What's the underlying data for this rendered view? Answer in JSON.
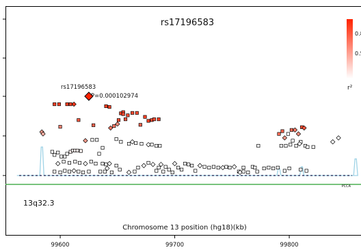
{
  "chart_data": {
    "type": "scatter",
    "title": "rs17196583",
    "xlabel": "Chromosome 13 position  (hg18)(kb)",
    "region_label": "13q32.3",
    "xlim": [
      99552,
      99865
    ],
    "x_ticks": [
      "99600",
      "99700",
      "99800"
    ],
    "gene_label": "PCCA",
    "legend": {
      "ticks": [
        "0.8",
        "0.5"
      ],
      "title": "r²",
      "gradient_colors": [
        "#ff2200",
        "#ffffff"
      ],
      "placement": "top-right"
    },
    "index_snp": {
      "name": "rs17196583",
      "p_label": "P=0.000102974",
      "x": 99625,
      "level": 2.0,
      "r2": 1.0,
      "shape": "diamond"
    },
    "points": [
      [
        99584,
        1.1,
        0.45,
        "d"
      ],
      [
        99585,
        1.05,
        0.35,
        "d"
      ],
      [
        99593,
        0.6,
        0.0,
        "s"
      ],
      [
        99595,
        0.52,
        0.0,
        "s"
      ],
      [
        99598,
        0.58,
        0.0,
        "s"
      ],
      [
        99601,
        0.48,
        0.0,
        "s"
      ],
      [
        99604,
        0.48,
        0.0,
        "s"
      ],
      [
        99606,
        0.55,
        0.0,
        "s"
      ],
      [
        99609,
        0.6,
        0.05,
        "s"
      ],
      [
        99611,
        0.63,
        0.05,
        "s"
      ],
      [
        99613,
        0.63,
        0.05,
        "s"
      ],
      [
        99615,
        0.63,
        0.05,
        "s"
      ],
      [
        99618,
        0.62,
        0.05,
        "s"
      ],
      [
        99595,
        0.1,
        0.0,
        "s"
      ],
      [
        99600,
        0.08,
        0.0,
        "s"
      ],
      [
        99604,
        0.12,
        0.0,
        "s"
      ],
      [
        99608,
        0.1,
        0.0,
        "s"
      ],
      [
        99612,
        0.12,
        0.0,
        "d"
      ],
      [
        99616,
        0.1,
        0.0,
        "s"
      ],
      [
        99620,
        0.08,
        0.0,
        "s"
      ],
      [
        99625,
        0.1,
        0.0,
        "s"
      ],
      [
        99598,
        0.3,
        0.0,
        "d"
      ],
      [
        99603,
        0.35,
        0.0,
        "s"
      ],
      [
        99608,
        0.32,
        0.0,
        "s"
      ],
      [
        99613,
        0.35,
        0.0,
        "s"
      ],
      [
        99617,
        0.32,
        0.0,
        "s"
      ],
      [
        99622,
        0.3,
        0.0,
        "d"
      ],
      [
        99627,
        0.35,
        0.0,
        "s"
      ],
      [
        99631,
        0.3,
        0.0,
        "s"
      ],
      [
        99595,
        1.8,
        0.85,
        "s"
      ],
      [
        99599,
        1.8,
        0.85,
        "s"
      ],
      [
        99606,
        1.8,
        0.85,
        "s"
      ],
      [
        99609,
        1.8,
        0.85,
        "s"
      ],
      [
        99612,
        1.8,
        0.9,
        "d"
      ],
      [
        99600,
        1.23,
        0.55,
        "s"
      ],
      [
        99616,
        1.4,
        0.75,
        "s"
      ],
      [
        99622,
        0.88,
        0.45,
        "d"
      ],
      [
        99628,
        0.9,
        0.0,
        "s"
      ],
      [
        99632,
        0.9,
        0.0,
        "s"
      ],
      [
        99629,
        1.27,
        0.7,
        "s"
      ],
      [
        99634,
        0.55,
        0.0,
        "s"
      ],
      [
        99637,
        0.7,
        0.0,
        "s"
      ],
      [
        99637,
        0.3,
        0.0,
        "s"
      ],
      [
        99640,
        0.28,
        0.0,
        "s"
      ],
      [
        99643,
        0.3,
        0.0,
        "d"
      ],
      [
        99635,
        0.1,
        0.0,
        "s"
      ],
      [
        99639,
        0.1,
        0.0,
        "s"
      ],
      [
        99641,
        0.18,
        0.0,
        "d"
      ],
      [
        99645,
        0.08,
        0.0,
        "s"
      ],
      [
        99649,
        0.25,
        0.0,
        "s"
      ],
      [
        99652,
        0.15,
        0.0,
        "s"
      ],
      [
        99640,
        1.75,
        0.85,
        "s"
      ],
      [
        99643,
        1.73,
        0.85,
        "s"
      ],
      [
        99644,
        1.2,
        0.6,
        "d"
      ],
      [
        99647,
        1.25,
        0.6,
        "s"
      ],
      [
        99650,
        1.3,
        0.5,
        "d"
      ],
      [
        99653,
        1.57,
        0.85,
        "s"
      ],
      [
        99655,
        1.6,
        0.8,
        "s"
      ],
      [
        99655,
        1.55,
        0.8,
        "s"
      ],
      [
        99659,
        1.52,
        0.8,
        "s"
      ],
      [
        99663,
        1.58,
        0.8,
        "s"
      ],
      [
        99667,
        1.58,
        0.8,
        "s"
      ],
      [
        99651,
        1.4,
        0.8,
        "s"
      ],
      [
        99657,
        1.42,
        0.75,
        "s"
      ],
      [
        99670,
        1.28,
        0.7,
        "s"
      ],
      [
        99674,
        1.48,
        0.85,
        "s"
      ],
      [
        99677,
        1.38,
        0.85,
        "s"
      ],
      [
        99680,
        1.4,
        0.8,
        "s"
      ],
      [
        99682,
        1.42,
        0.8,
        "s"
      ],
      [
        99686,
        1.42,
        0.85,
        "s"
      ],
      [
        99649,
        0.92,
        0.0,
        "s"
      ],
      [
        99653,
        0.85,
        0.0,
        "s"
      ],
      [
        99660,
        0.8,
        0.0,
        "s"
      ],
      [
        99663,
        0.85,
        0.0,
        "d"
      ],
      [
        99666,
        0.82,
        0.0,
        "s"
      ],
      [
        99671,
        0.8,
        0.0,
        "s"
      ],
      [
        99677,
        0.78,
        0.0,
        "d"
      ],
      [
        99680,
        0.78,
        0.0,
        "s"
      ],
      [
        99684,
        0.75,
        0.0,
        "s"
      ],
      [
        99687,
        0.75,
        0.0,
        "s"
      ],
      [
        99660,
        0.08,
        0.0,
        "d"
      ],
      [
        99665,
        0.1,
        0.0,
        "s"
      ],
      [
        99668,
        0.2,
        0.0,
        "s"
      ],
      [
        99673,
        0.25,
        0.0,
        "d"
      ],
      [
        99677,
        0.32,
        0.0,
        "s"
      ],
      [
        99681,
        0.28,
        0.0,
        "d"
      ],
      [
        99684,
        0.12,
        0.0,
        "s"
      ],
      [
        99686,
        0.2,
        0.0,
        "s"
      ],
      [
        99688,
        0.28,
        0.0,
        "d"
      ],
      [
        99690,
        0.1,
        0.0,
        "s"
      ],
      [
        99692,
        0.22,
        0.0,
        "s"
      ],
      [
        99695,
        0.15,
        0.0,
        "s"
      ],
      [
        99698,
        0.08,
        0.0,
        "s"
      ],
      [
        99700,
        0.3,
        0.0,
        "d"
      ],
      [
        99703,
        0.2,
        0.0,
        "s"
      ],
      [
        99706,
        0.15,
        0.0,
        "s"
      ],
      [
        99709,
        0.3,
        0.0,
        "s"
      ],
      [
        99712,
        0.28,
        0.0,
        "s"
      ],
      [
        99715,
        0.25,
        0.0,
        "s"
      ],
      [
        99718,
        0.12,
        0.0,
        "s"
      ],
      [
        99722,
        0.25,
        0.0,
        "d"
      ],
      [
        99726,
        0.22,
        0.0,
        "s"
      ],
      [
        99730,
        0.2,
        0.0,
        "s"
      ],
      [
        99734,
        0.22,
        0.0,
        "s"
      ],
      [
        99738,
        0.2,
        0.0,
        "s"
      ],
      [
        99742,
        0.2,
        0.0,
        "d"
      ],
      [
        99745,
        0.22,
        0.0,
        "s"
      ],
      [
        99748,
        0.2,
        0.0,
        "s"
      ],
      [
        99752,
        0.22,
        0.0,
        "d"
      ],
      [
        99756,
        0.1,
        0.0,
        "s"
      ],
      [
        99760,
        0.2,
        0.0,
        "s"
      ],
      [
        99764,
        0.08,
        0.0,
        "s"
      ],
      [
        99768,
        0.22,
        0.0,
        "s"
      ],
      [
        99770,
        0.2,
        0.0,
        "s"
      ],
      [
        99772,
        0.1,
        0.0,
        "s"
      ],
      [
        99778,
        0.18,
        0.0,
        "s"
      ],
      [
        99782,
        0.2,
        0.0,
        "s"
      ],
      [
        99786,
        0.18,
        0.0,
        "s"
      ],
      [
        99790,
        0.2,
        0.0,
        "s"
      ],
      [
        99796,
        0.12,
        0.0,
        "s"
      ],
      [
        99800,
        0.18,
        0.0,
        "s"
      ],
      [
        99810,
        0.15,
        0.0,
        "s"
      ],
      [
        99815,
        0.12,
        0.0,
        "s"
      ],
      [
        99757,
        0.08,
        0.0,
        "d"
      ],
      [
        99760,
        0.1,
        0.0,
        "s"
      ],
      [
        99773,
        0.75,
        0.0,
        "s"
      ],
      [
        99791,
        1.05,
        0.65,
        "s"
      ],
      [
        99794,
        1.12,
        0.7,
        "s"
      ],
      [
        99796,
        0.95,
        0.45,
        "d"
      ],
      [
        99799,
        1.05,
        0.0,
        "s"
      ],
      [
        99802,
        1.15,
        0.65,
        "s"
      ],
      [
        99805,
        1.15,
        0.6,
        "d"
      ],
      [
        99808,
        1.05,
        0.5,
        "d"
      ],
      [
        99811,
        1.22,
        0.8,
        "s"
      ],
      [
        99813,
        1.2,
        0.75,
        "d"
      ],
      [
        99793,
        0.75,
        0.0,
        "s"
      ],
      [
        99797,
        0.75,
        0.0,
        "s"
      ],
      [
        99801,
        0.78,
        0.0,
        "s"
      ],
      [
        99806,
        0.75,
        0.0,
        "s"
      ],
      [
        99810,
        0.85,
        0.0,
        "s"
      ],
      [
        99814,
        0.75,
        0.0,
        "s"
      ],
      [
        99816,
        0.72,
        0.0,
        "s"
      ],
      [
        99821,
        0.72,
        0.0,
        "s"
      ],
      [
        99809,
        0.8,
        0.0,
        "d"
      ],
      [
        99838,
        0.85,
        0.0,
        "d"
      ],
      [
        99843,
        0.95,
        0.0,
        "d"
      ],
      [
        99803,
        0.88,
        0.0,
        "s"
      ]
    ],
    "recombination_peaks": [
      {
        "x": 99584,
        "height": 0.72
      },
      {
        "x": 99791,
        "height": 0.18
      },
      {
        "x": 99811,
        "height": 0.22
      },
      {
        "x": 99858,
        "height": 0.42
      }
    ]
  }
}
